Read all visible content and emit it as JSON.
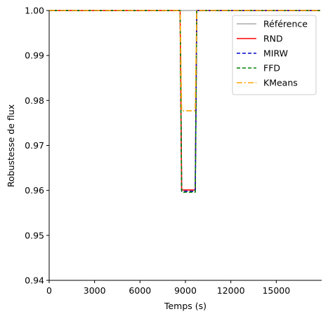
{
  "chart_data": {
    "type": "line",
    "title": "",
    "xlabel": "Temps (s)",
    "ylabel": "Robustesse de flux",
    "xlim": [
      0,
      18000
    ],
    "ylim": [
      0.94,
      1.0
    ],
    "x_ticks": [
      0,
      3000,
      6000,
      9000,
      12000,
      15000
    ],
    "x_tick_labels": [
      "0",
      "3000",
      "6000",
      "9000",
      "12000",
      "15000"
    ],
    "y_ticks": [
      0.94,
      0.95,
      0.96,
      0.97,
      0.98,
      0.99,
      1.0
    ],
    "y_tick_labels": [
      "0.94",
      "0.95",
      "0.96",
      "0.97",
      "0.98",
      "0.99",
      "1.00"
    ],
    "grid": false,
    "legend_position": "top-right",
    "series": [
      {
        "name": "Référence",
        "color": "#aaaaaa",
        "style": "solid",
        "x": [
          0,
          17900
        ],
        "y": [
          1.0,
          1.0
        ]
      },
      {
        "name": "RND",
        "color": "#ff0000",
        "style": "solid",
        "x": [
          0,
          8650,
          8750,
          9650,
          9750,
          17900
        ],
        "y": [
          1.0,
          1.0,
          0.9601,
          0.9601,
          1.0,
          1.0
        ]
      },
      {
        "name": "MIRW",
        "color": "#0000cc",
        "style": "dashed",
        "x": [
          0,
          8650,
          8750,
          9650,
          9750,
          17900
        ],
        "y": [
          1.0,
          1.0,
          0.9598,
          0.9598,
          1.0,
          1.0
        ]
      },
      {
        "name": "FFD",
        "color": "#008000",
        "style": "dashed",
        "x": [
          0,
          8650,
          8750,
          9650,
          9750,
          17900
        ],
        "y": [
          1.0,
          1.0,
          0.9596,
          0.9596,
          1.0,
          1.0
        ]
      },
      {
        "name": "KMeans",
        "color": "#ffa500",
        "style": "dashdot",
        "x": [
          0,
          8650,
          8750,
          9650,
          9750,
          17900
        ],
        "y": [
          1.0,
          1.0,
          0.9777,
          0.9777,
          1.0,
          1.0
        ]
      }
    ]
  }
}
